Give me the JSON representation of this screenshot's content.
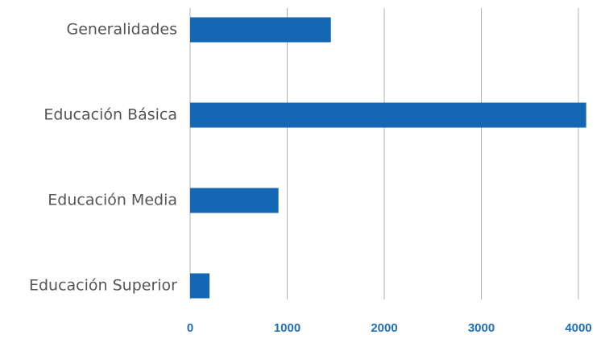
{
  "chart_data": {
    "type": "barh",
    "categories": [
      "Generalidades",
      "Educación Básica",
      "Educación Media",
      "Educación Superior"
    ],
    "values": [
      1450,
      4080,
      910,
      200
    ],
    "color": "#1467b3",
    "xlim": [
      0,
      4200
    ],
    "xticks": [
      0,
      1000,
      2000,
      3000,
      4000
    ],
    "grid": true
  }
}
